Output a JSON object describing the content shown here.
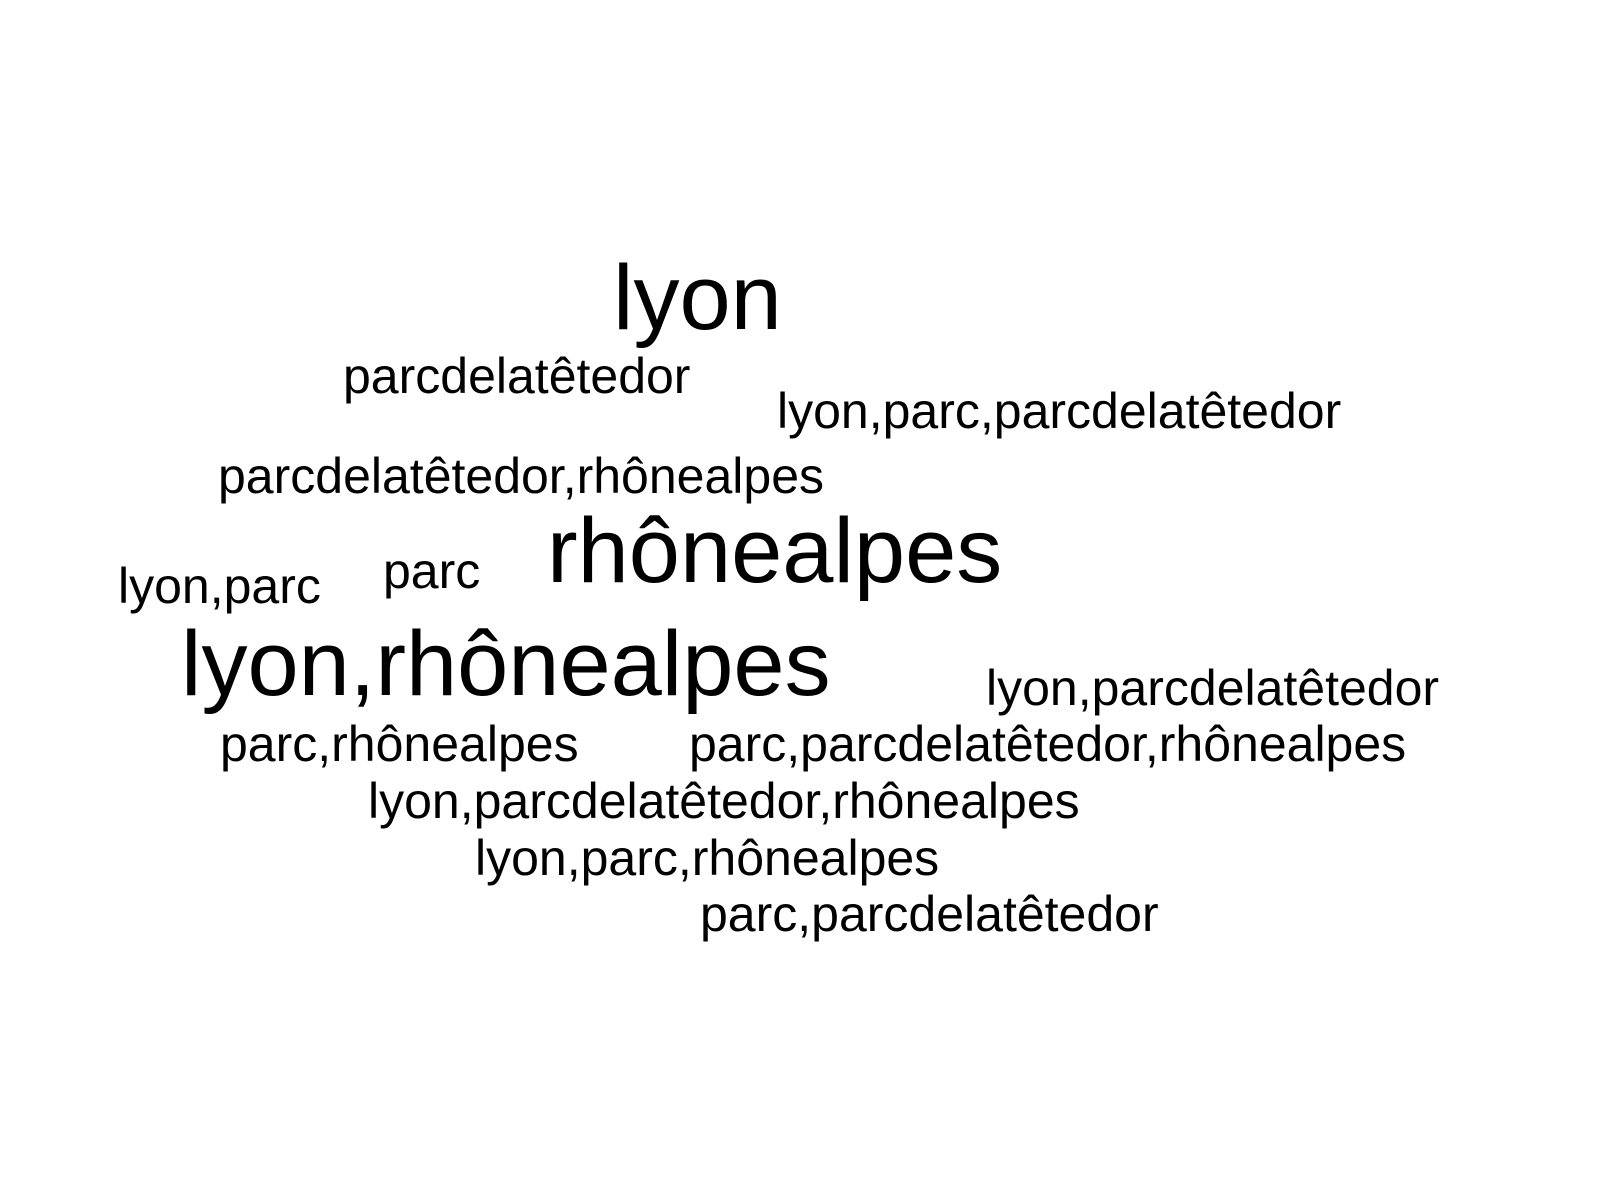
{
  "word_cloud": {
    "words": [
      {
        "text": "lyon",
        "weight": 2
      },
      {
        "text": "parcdelatêtedor",
        "weight": 1
      },
      {
        "text": "lyon,parc,parcdelatêtedor",
        "weight": 1
      },
      {
        "text": "parcdelatêtedor,rhônealpes",
        "weight": 1
      },
      {
        "text": "rhônealpes",
        "weight": 2
      },
      {
        "text": "lyon,parc",
        "weight": 1
      },
      {
        "text": "parc",
        "weight": 1
      },
      {
        "text": "lyon,rhônealpes",
        "weight": 2
      },
      {
        "text": "lyon,parcdelatêtedor",
        "weight": 1
      },
      {
        "text": "parc,rhônealpes",
        "weight": 1
      },
      {
        "text": "parc,parcdelatêtedor,rhônealpes",
        "weight": 1
      },
      {
        "text": "lyon,parcdelatêtedor,rhônealpes",
        "weight": 1
      },
      {
        "text": "lyon,parc,rhônealpes",
        "weight": 1
      },
      {
        "text": "parc,parcdelatêtedor",
        "weight": 1
      }
    ],
    "text_color": "#000000",
    "background_color": "#ffffff"
  }
}
